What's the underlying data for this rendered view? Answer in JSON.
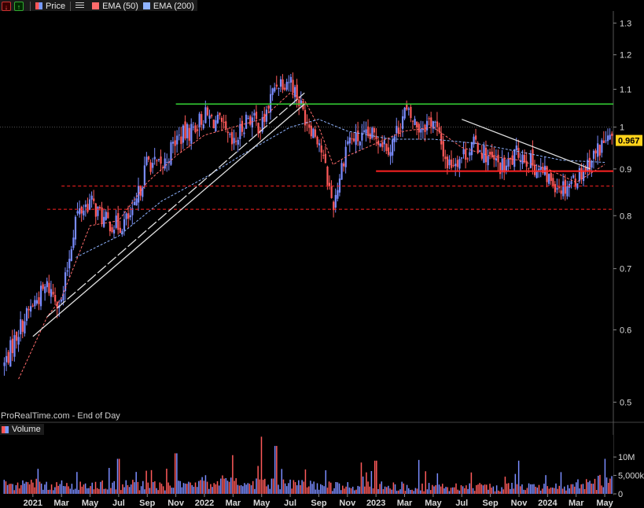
{
  "legend": {
    "price_label": "Price",
    "ema50_label": "EMA (50)",
    "ema200_label": "EMA (200)",
    "icons": [
      "download-red-icon",
      "upload-green-icon",
      "list-icon"
    ]
  },
  "watermark": "ProRealTime.com - End of Day",
  "volume_label": "Volume",
  "colors": {
    "up": "#7a8cff",
    "down": "#ff5a5a",
    "ema50": "#ff6b6b",
    "ema200": "#8fb3ff",
    "resistance": "#33cc33",
    "support": "#ff2222",
    "trendline": "#e0e0e0",
    "last_price_bg": "#ffd21a"
  },
  "chart_data": [
    {
      "type": "candlestick",
      "title": "",
      "yscale": "log",
      "ylim": [
        0.48,
        1.34
      ],
      "yticks": [
        "1.3",
        "1.2",
        "1.1",
        "1",
        "0.9",
        "0.8",
        "0.7",
        "0.6",
        "0.5"
      ],
      "ytick_values": [
        1.3,
        1.2,
        1.1,
        1.0,
        0.9,
        0.8,
        0.7,
        0.6,
        0.5
      ],
      "x_labels": [
        "2021",
        "Mar",
        "May",
        "Jul",
        "Sep",
        "Nov",
        "2022",
        "Mar",
        "May",
        "Jul",
        "Sep",
        "Nov",
        "2023",
        "Mar",
        "May",
        "Jul",
        "Sep",
        "Nov",
        "2024",
        "Mar",
        "May"
      ],
      "x_months": [
        "2021-01",
        "2021-03",
        "2021-05",
        "2021-07",
        "2021-09",
        "2021-11",
        "2022-01",
        "2022-03",
        "2022-05",
        "2022-07",
        "2022-09",
        "2022-11",
        "2023-01",
        "2023-03",
        "2023-05",
        "2023-07",
        "2023-09",
        "2023-11",
        "2024-01",
        "2024-03",
        "2024-05"
      ],
      "last_price": "0.967",
      "price_path": [
        [
          "2020-11",
          0.55
        ],
        [
          "2020-12",
          0.6
        ],
        [
          "2021-01",
          0.64
        ],
        [
          "2021-02",
          0.67
        ],
        [
          "2021-03",
          0.64
        ],
        [
          "2021-04",
          0.8
        ],
        [
          "2021-05",
          0.83
        ],
        [
          "2021-06",
          0.79
        ],
        [
          "2021-07",
          0.78
        ],
        [
          "2021-08",
          0.8
        ],
        [
          "2021-09",
          0.92
        ],
        [
          "2021-10",
          0.9
        ],
        [
          "2021-11",
          0.97
        ],
        [
          "2021-12",
          0.99
        ],
        [
          "2022-01",
          1.03
        ],
        [
          "2022-02",
          1.01
        ],
        [
          "2022-03",
          0.95
        ],
        [
          "2022-04",
          1.03
        ],
        [
          "2022-05",
          1.0
        ],
        [
          "2022-06",
          1.12
        ],
        [
          "2022-07",
          1.13
        ],
        [
          "2022-08",
          1.03
        ],
        [
          "2022-09",
          0.97
        ],
        [
          "2022-10",
          0.82
        ],
        [
          "2022-11",
          0.97
        ],
        [
          "2022-12",
          0.97
        ],
        [
          "2023-01",
          0.98
        ],
        [
          "2023-02",
          0.95
        ],
        [
          "2023-03",
          1.04
        ],
        [
          "2023-04",
          1.0
        ],
        [
          "2023-05",
          1.02
        ],
        [
          "2023-06",
          0.91
        ],
        [
          "2023-07",
          0.93
        ],
        [
          "2023-08",
          0.96
        ],
        [
          "2023-09",
          0.92
        ],
        [
          "2023-10",
          0.9
        ],
        [
          "2023-11",
          0.94
        ],
        [
          "2023-12",
          0.91
        ],
        [
          "2024-01",
          0.88
        ],
        [
          "2024-02",
          0.86
        ],
        [
          "2024-03",
          0.88
        ],
        [
          "2024-04",
          0.92
        ],
        [
          "2024-05",
          0.967
        ]
      ],
      "ema50_path": [
        [
          "2020-12",
          0.53
        ],
        [
          "2021-02",
          0.62
        ],
        [
          "2021-03",
          0.65
        ],
        [
          "2021-05",
          0.78
        ],
        [
          "2021-07",
          0.79
        ],
        [
          "2021-09",
          0.87
        ],
        [
          "2021-11",
          0.93
        ],
        [
          "2022-01",
          0.98
        ],
        [
          "2022-03",
          1.0
        ],
        [
          "2022-05",
          1.02
        ],
        [
          "2022-07",
          1.09
        ],
        [
          "2022-08",
          1.07
        ],
        [
          "2022-09",
          1.0
        ],
        [
          "2022-10",
          0.91
        ],
        [
          "2022-11",
          0.93
        ],
        [
          "2023-01",
          0.96
        ],
        [
          "2023-03",
          0.99
        ],
        [
          "2023-05",
          1.0
        ],
        [
          "2023-07",
          0.95
        ],
        [
          "2023-09",
          0.93
        ],
        [
          "2023-11",
          0.92
        ],
        [
          "2024-01",
          0.9
        ],
        [
          "2024-03",
          0.87
        ],
        [
          "2024-05",
          0.91
        ]
      ],
      "ema200_path": [
        [
          "2021-04",
          0.72
        ],
        [
          "2021-07",
          0.76
        ],
        [
          "2021-10",
          0.83
        ],
        [
          "2022-01",
          0.88
        ],
        [
          "2022-04",
          0.94
        ],
        [
          "2022-07",
          1.0
        ],
        [
          "2022-09",
          1.02
        ],
        [
          "2022-11",
          0.99
        ],
        [
          "2023-02",
          0.97
        ],
        [
          "2023-05",
          0.97
        ],
        [
          "2023-08",
          0.96
        ],
        [
          "2023-11",
          0.94
        ],
        [
          "2024-02",
          0.92
        ],
        [
          "2024-05",
          0.915
        ]
      ],
      "levels": {
        "resistance": 1.06,
        "support": 0.895,
        "dashed_upper": 0.862,
        "dashed_lower": 0.813
      },
      "segments": {
        "resistance_from": "2021-11",
        "support_from": "2023-01",
        "dashed_upper_from": "2021-03",
        "dashed_lower_from": "2021-02",
        "trend_lower": [
          [
            "2021-01",
            0.59
          ],
          [
            "2022-08",
            1.06
          ]
        ],
        "trend_upper": [
          [
            "2021-02",
            0.62
          ],
          [
            "2022-08",
            1.09
          ]
        ],
        "downtrend": [
          [
            "2023-07",
            1.02
          ],
          [
            "2024-04",
            0.9
          ]
        ]
      }
    },
    {
      "type": "bar",
      "title": "Volume",
      "yticks": [
        "10M",
        "5,000k",
        "0"
      ],
      "ytick_values": [
        10000000,
        5000000,
        0
      ],
      "ylim": [
        0,
        16000000
      ],
      "volume_profile": [
        [
          "2021-01",
          2500000
        ],
        [
          "2021-06",
          2400000
        ],
        [
          "2021-12",
          2200000
        ],
        [
          "2022-04",
          3000000
        ],
        [
          "2022-09",
          2200000
        ],
        [
          "2023-03",
          2000000
        ],
        [
          "2023-10",
          1800000
        ],
        [
          "2024-03",
          2000000
        ],
        [
          "2024-05",
          3500000
        ]
      ],
      "volume_spikes": [
        [
          "2021-07",
          9500000
        ],
        [
          "2021-11",
          11000000
        ],
        [
          "2022-03",
          10500000
        ],
        [
          "2022-05",
          15500000
        ],
        [
          "2022-06",
          13000000
        ],
        [
          "2022-12",
          8500000
        ],
        [
          "2023-01",
          9000000
        ],
        [
          "2023-04",
          9200000
        ],
        [
          "2023-11",
          9000000
        ],
        [
          "2024-05",
          9500000
        ]
      ]
    }
  ]
}
